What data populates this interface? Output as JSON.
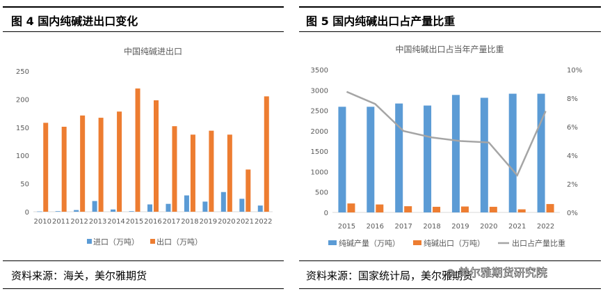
{
  "left": {
    "figure_title": "图 4  国内纯碱进出口变化",
    "source": "资料来源：海关，美尔雅期货"
  },
  "right": {
    "figure_title": "图 5  国内纯碱出口占产量比重",
    "source": "资料来源：国家统计局，美尔雅期货"
  },
  "watermark": "美尔雅期货研究院",
  "colors": {
    "blue": "#5B9BD5",
    "orange": "#ED7D31",
    "gray": "#A5A5A5"
  },
  "chart_data": [
    {
      "type": "bar",
      "title": "中国纯碱进出口",
      "categories": [
        "2010",
        "2011",
        "2012",
        "2013",
        "2014",
        "2015",
        "2016",
        "2017",
        "2018",
        "2019",
        "2020",
        "2021",
        "2022"
      ],
      "series": [
        {
          "name": "进口（万吨）",
          "color": "#5B9BD5",
          "values": [
            0.5,
            1,
            3,
            19,
            4,
            1,
            13,
            14,
            29,
            18,
            35,
            23,
            11
          ]
        },
        {
          "name": "出口（万吨）",
          "color": "#ED7D31",
          "values": [
            158,
            151,
            171,
            167,
            178,
            219,
            198,
            152,
            137,
            144,
            137,
            75,
            205
          ]
        }
      ],
      "ylim": [
        0,
        250
      ],
      "yticks": [
        "0",
        "50",
        "100",
        "150",
        "200",
        "250"
      ],
      "legend": "bottom"
    },
    {
      "type": "bar",
      "title": "中国纯碱出口占当年产量比重",
      "categories": [
        "2015",
        "2016",
        "2017",
        "2018",
        "2019",
        "2020",
        "2021",
        "2022"
      ],
      "series": [
        {
          "name": "纯碱产量（万吨）",
          "color": "#5B9BD5",
          "axis": "left",
          "values": [
            2590,
            2590,
            2670,
            2620,
            2880,
            2810,
            2910,
            2910
          ]
        },
        {
          "name": "纯碱出口（万吨）",
          "color": "#ED7D31",
          "axis": "left",
          "values": [
            220,
            195,
            152,
            138,
            145,
            138,
            76,
            206
          ]
        },
        {
          "name": "出口占产量比重",
          "color": "#A5A5A5",
          "axis": "right",
          "type": "line",
          "values": [
            8.45,
            7.6,
            5.7,
            5.25,
            5.0,
            4.9,
            2.6,
            7.1
          ]
        }
      ],
      "ylim": [
        0,
        3500
      ],
      "yticks": [
        "0",
        "500",
        "1000",
        "1500",
        "2000",
        "2500",
        "3000",
        "3500"
      ],
      "y2lim": [
        0,
        10
      ],
      "y2ticks": [
        "0%",
        "2%",
        "4%",
        "6%",
        "8%",
        "10%"
      ],
      "legend": "bottom"
    }
  ]
}
